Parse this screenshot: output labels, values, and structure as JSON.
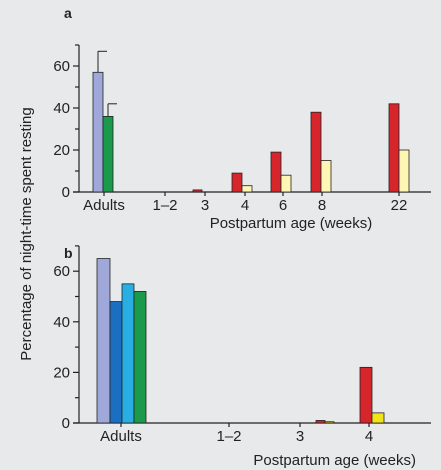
{
  "figure": {
    "background": "#e8e9ea",
    "ylabel": "Percentage of night-time spent resting"
  },
  "chart_data": [
    {
      "panel": "a",
      "type": "bar",
      "categories": [
        "Adults",
        "1–2",
        "3",
        "4",
        "6",
        "8",
        "22"
      ],
      "xlabel": "Postpartum age (weeks)",
      "ylim": [
        0,
        70
      ],
      "yticks": [
        0,
        20,
        40,
        60
      ],
      "bars": [
        {
          "category": "Adults",
          "value": 57,
          "error": 10,
          "color": "#9fa8d8"
        },
        {
          "category": "Adults",
          "value": 36,
          "error": 6,
          "color": "#1a9a4a"
        },
        {
          "category": "3",
          "value": 1,
          "color": "#d7262b"
        },
        {
          "category": "4",
          "value": 9,
          "color": "#d7262b"
        },
        {
          "category": "4",
          "value": 3,
          "color": "#fdf6b5"
        },
        {
          "category": "6",
          "value": 19,
          "color": "#d7262b"
        },
        {
          "category": "6",
          "value": 8,
          "color": "#fdf6b5"
        },
        {
          "category": "8",
          "value": 38,
          "color": "#d7262b"
        },
        {
          "category": "8",
          "value": 15,
          "color": "#fdf6b5"
        },
        {
          "category": "22",
          "value": 42,
          "color": "#d7262b"
        },
        {
          "category": "22",
          "value": 20,
          "color": "#fdf6b5"
        }
      ]
    },
    {
      "panel": "b",
      "type": "bar",
      "categories": [
        "Adults",
        "1–2",
        "3",
        "4"
      ],
      "xlabel": "Postpartum age (weeks)",
      "ylim": [
        0,
        70
      ],
      "yticks": [
        0,
        20,
        40,
        60
      ],
      "bars": [
        {
          "category": "Adults",
          "value": 65,
          "color": "#9fa8d8"
        },
        {
          "category": "Adults",
          "value": 48,
          "color": "#1c6fc0"
        },
        {
          "category": "Adults",
          "value": 55,
          "color": "#29aee3"
        },
        {
          "category": "Adults",
          "value": 52,
          "color": "#1a9a4a"
        },
        {
          "category": "3",
          "value": 1,
          "color": "#d7262b"
        },
        {
          "category": "3",
          "value": 0.5,
          "color": "#f2e21a"
        },
        {
          "category": "4",
          "value": 22,
          "color": "#d7262b"
        },
        {
          "category": "4",
          "value": 4,
          "color": "#f2e21a"
        }
      ]
    }
  ]
}
